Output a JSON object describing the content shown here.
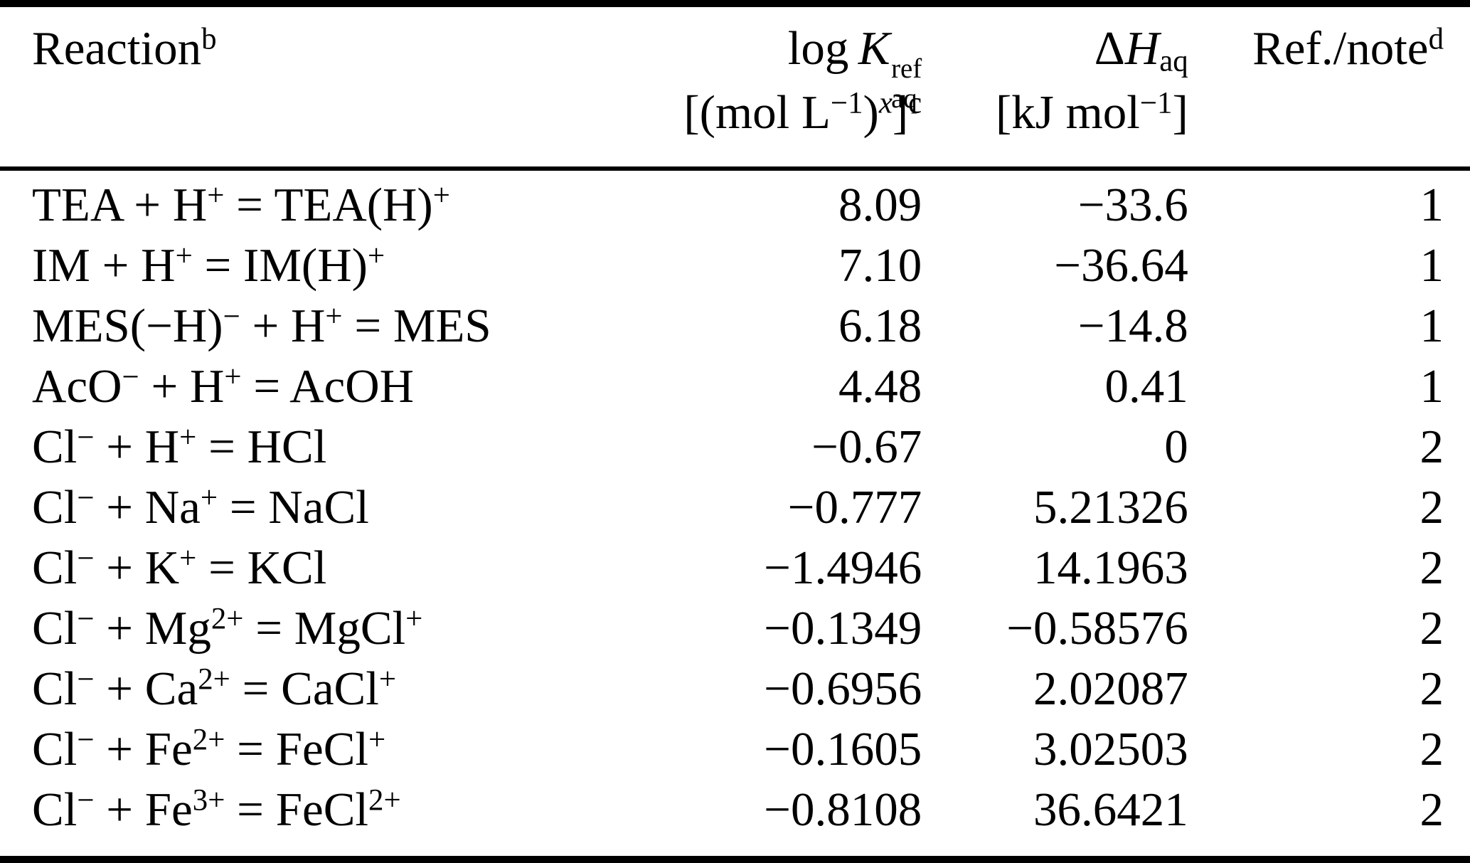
{
  "page": {
    "background": "#ffffff",
    "text_color": "#000000",
    "rule_color": "#000000"
  },
  "header": {
    "reaction": {
      "label": "Reaction",
      "note": "b"
    },
    "logk": {
      "word": "log",
      "symbol": "K",
      "sup": "ref",
      "sub": "aq",
      "units": "[(mol L^{−1})^{*x*}]^{c}"
    },
    "dh": {
      "delta": "Δ",
      "symbol": "H",
      "sub": "aq",
      "units": "[kJ mol^{−1}]"
    },
    "ref": {
      "label": "Ref./note",
      "note": "d"
    }
  },
  "rows": [
    {
      "reaction": "TEA + H^{+} = TEA(H)^{+}",
      "logk": "8.09",
      "dh": "−33.6",
      "ref": "1"
    },
    {
      "reaction": "IM + H^{+} = IM(H)^{+}",
      "logk": "7.10",
      "dh": "−36.64",
      "ref": "1"
    },
    {
      "reaction": "MES(−H)^{−} + H^{+} = MES",
      "logk": "6.18",
      "dh": "−14.8",
      "ref": "1"
    },
    {
      "reaction": "AcO^{−} + H^{+} = AcOH",
      "logk": "4.48",
      "dh": "0.41",
      "ref": "1"
    },
    {
      "reaction": "Cl^{−} + H^{+} = HCl",
      "logk": "−0.67",
      "dh": "0",
      "ref": "2"
    },
    {
      "reaction": "Cl^{−} + Na^{+} = NaCl",
      "logk": "−0.777",
      "dh": "5.21326",
      "ref": "2"
    },
    {
      "reaction": "Cl^{−} + K^{+} = KCl",
      "logk": "−1.4946",
      "dh": "14.1963",
      "ref": "2"
    },
    {
      "reaction": "Cl^{−} + Mg^{2+} = MgCl^{+}",
      "logk": "−0.1349",
      "dh": "−0.58576",
      "ref": "2"
    },
    {
      "reaction": "Cl^{−} + Ca^{2+} = CaCl^{+}",
      "logk": "−0.6956",
      "dh": "2.02087",
      "ref": "2"
    },
    {
      "reaction": "Cl^{−} + Fe^{2+} = FeCl^{+}",
      "logk": "−0.1605",
      "dh": "3.02503",
      "ref": "2"
    },
    {
      "reaction": "Cl^{−} + Fe^{3+} = FeCl^{2+}",
      "logk": "−0.8108",
      "dh": "36.6421",
      "ref": "2"
    }
  ]
}
